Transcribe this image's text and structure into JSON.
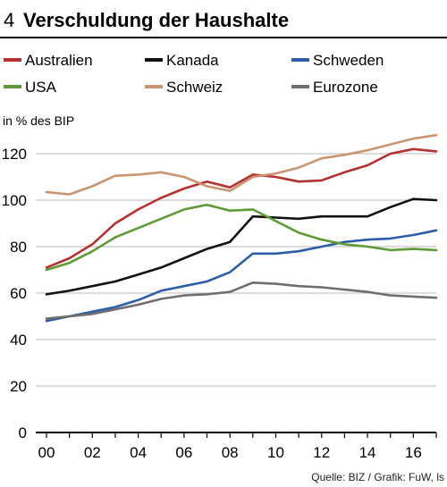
{
  "header": {
    "number": "4",
    "title": "Verschuldung der Haushalte"
  },
  "unit_label": "in % des BIP",
  "source": "Quelle: BIZ / Grafik: FuW, ls",
  "chart_data": {
    "type": "line",
    "title": "Verschuldung der Haushalte",
    "ylabel": "in % des BIP",
    "ylim": [
      0,
      130
    ],
    "yticks": [
      0,
      20,
      40,
      60,
      80,
      100,
      120
    ],
    "xlim": [
      2000,
      2017
    ],
    "xticks": [
      {
        "value": 2000,
        "label": "00"
      },
      {
        "value": 2002,
        "label": "02"
      },
      {
        "value": 2004,
        "label": "04"
      },
      {
        "value": 2006,
        "label": "06"
      },
      {
        "value": 2008,
        "label": "08"
      },
      {
        "value": 2010,
        "label": "10"
      },
      {
        "value": 2012,
        "label": "12"
      },
      {
        "value": 2014,
        "label": "14"
      },
      {
        "value": 2016,
        "label": "16"
      }
    ],
    "grid": "horizontal",
    "legend_position": "top",
    "series": [
      {
        "name": "Australien",
        "color": "#b5302e",
        "points": [
          [
            2000,
            71
          ],
          [
            2001,
            75
          ],
          [
            2002,
            81
          ],
          [
            2003,
            90
          ],
          [
            2004,
            96
          ],
          [
            2005,
            101
          ],
          [
            2006,
            105
          ],
          [
            2007,
            108
          ],
          [
            2008,
            105.5
          ],
          [
            2009,
            111
          ],
          [
            2010,
            110
          ],
          [
            2011,
            108
          ],
          [
            2012,
            108.5
          ],
          [
            2013,
            112
          ],
          [
            2014,
            115
          ],
          [
            2015,
            120
          ],
          [
            2016,
            122
          ],
          [
            2017,
            121
          ]
        ]
      },
      {
        "name": "Kanada",
        "color": "#111111",
        "points": [
          [
            2000,
            59.5
          ],
          [
            2001,
            61
          ],
          [
            2002,
            63
          ],
          [
            2003,
            65
          ],
          [
            2004,
            68
          ],
          [
            2005,
            71
          ],
          [
            2006,
            75
          ],
          [
            2007,
            79
          ],
          [
            2008,
            82
          ],
          [
            2009,
            93
          ],
          [
            2010,
            92.5
          ],
          [
            2011,
            92
          ],
          [
            2012,
            93
          ],
          [
            2013,
            93
          ],
          [
            2014,
            93
          ],
          [
            2015,
            97
          ],
          [
            2016,
            100.5
          ],
          [
            2017,
            100
          ]
        ]
      },
      {
        "name": "Schweden",
        "color": "#2b5ea7",
        "points": [
          [
            2000,
            48
          ],
          [
            2001,
            50
          ],
          [
            2002,
            52
          ],
          [
            2003,
            54
          ],
          [
            2004,
            57
          ],
          [
            2005,
            61
          ],
          [
            2006,
            63
          ],
          [
            2007,
            65
          ],
          [
            2008,
            69
          ],
          [
            2009,
            77
          ],
          [
            2010,
            77
          ],
          [
            2011,
            78
          ],
          [
            2012,
            80
          ],
          [
            2013,
            82
          ],
          [
            2014,
            83
          ],
          [
            2015,
            83.5
          ],
          [
            2016,
            85
          ],
          [
            2017,
            87
          ]
        ]
      },
      {
        "name": "USA",
        "color": "#5f9a37",
        "points": [
          [
            2000,
            70
          ],
          [
            2001,
            73
          ],
          [
            2002,
            78
          ],
          [
            2003,
            84
          ],
          [
            2004,
            88
          ],
          [
            2005,
            92
          ],
          [
            2006,
            96
          ],
          [
            2007,
            98
          ],
          [
            2008,
            95.5
          ],
          [
            2009,
            96
          ],
          [
            2010,
            91
          ],
          [
            2011,
            86
          ],
          [
            2012,
            83
          ],
          [
            2013,
            81
          ],
          [
            2014,
            80
          ],
          [
            2015,
            78.5
          ],
          [
            2016,
            79
          ],
          [
            2017,
            78.5
          ]
        ]
      },
      {
        "name": "Schweiz",
        "color": "#c99470",
        "points": [
          [
            2000,
            103.5
          ],
          [
            2001,
            102.5
          ],
          [
            2002,
            106
          ],
          [
            2003,
            110.5
          ],
          [
            2004,
            111
          ],
          [
            2005,
            112
          ],
          [
            2006,
            110
          ],
          [
            2007,
            106
          ],
          [
            2008,
            104
          ],
          [
            2009,
            110
          ],
          [
            2010,
            111.5
          ],
          [
            2011,
            114
          ],
          [
            2012,
            118
          ],
          [
            2013,
            119.5
          ],
          [
            2014,
            121.5
          ],
          [
            2015,
            124
          ],
          [
            2016,
            126.5
          ],
          [
            2017,
            128
          ]
        ]
      },
      {
        "name": "Eurozone",
        "color": "#6e6e6e",
        "points": [
          [
            2000,
            49
          ],
          [
            2001,
            50
          ],
          [
            2002,
            51
          ],
          [
            2003,
            53
          ],
          [
            2004,
            55
          ],
          [
            2005,
            57.5
          ],
          [
            2006,
            59
          ],
          [
            2007,
            59.5
          ],
          [
            2008,
            60.5
          ],
          [
            2009,
            64.5
          ],
          [
            2010,
            64
          ],
          [
            2011,
            63
          ],
          [
            2012,
            62.5
          ],
          [
            2013,
            61.5
          ],
          [
            2014,
            60.5
          ],
          [
            2015,
            59
          ],
          [
            2016,
            58.5
          ],
          [
            2017,
            58
          ]
        ]
      }
    ]
  }
}
